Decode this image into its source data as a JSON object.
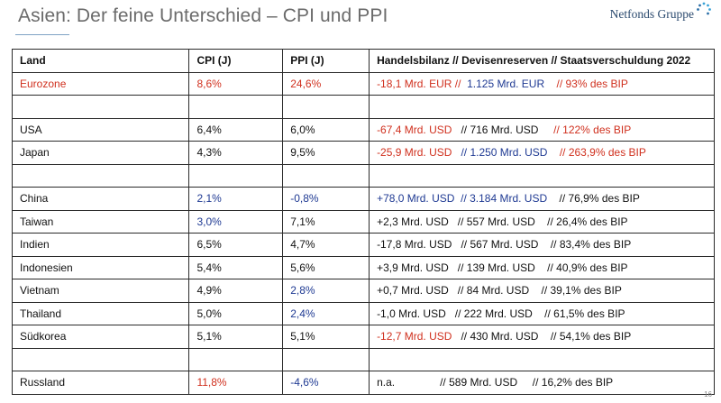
{
  "title": "Asien: Der feine Unterschied – CPI und PPI",
  "brand": "Netfonds Gruppe",
  "page_number": "16",
  "headers": {
    "land": "Land",
    "cpi": "CPI (J)",
    "ppi": "PPI (J)",
    "trade": "Handelsbilanz  // Devisenreserven  // Staatsverschuldung 2022"
  },
  "colors": {
    "red": "#d0301e",
    "blue": "#1f3a93",
    "black": "#111111"
  },
  "rows": [
    {
      "land": "Eurozone",
      "cpi": "8,6%",
      "ppi": "24,6%",
      "hb": "-18,1 Mrd. EUR  //",
      "dr": "1.125 Mrd. EUR",
      "sv": "//    93% des BIP"
    },
    {
      "land": "USA",
      "cpi": "6,4%",
      "ppi": "6,0%",
      "hb": "-67,4 Mrd. USD",
      "dr": "//  716 Mrd. USD",
      "sv": "//  122% des BIP"
    },
    {
      "land": "Japan",
      "cpi": "4,3%",
      "ppi": "9,5%",
      "hb": "-25,9 Mrd. USD",
      "dr": "//   1.250 Mrd. USD",
      "sv": "//  263,9% des BIP"
    },
    {
      "land": "China",
      "cpi": "2,1%",
      "ppi": "-0,8%",
      "hb": "+78,0 Mrd. USD",
      "dr": "// 3.184 Mrd. USD",
      "sv": "//   76,9% des BIP"
    },
    {
      "land": "Taiwan",
      "cpi": "3,0%",
      "ppi": "7,1%",
      "hb": "+2,3 Mrd. USD",
      "dr": "//    557 Mrd. USD",
      "sv": "//   26,4%  des BIP"
    },
    {
      "land": "Indien",
      "cpi": "6,5%",
      "ppi": "4,7%",
      "hb": "-17,8 Mrd. USD",
      "dr": "//    567 Mrd. USD",
      "sv": "//   83,4% des BIP"
    },
    {
      "land": "Indonesien",
      "cpi": "5,4%",
      "ppi": "5,6%",
      "hb": "+3,9 Mrd. USD",
      "dr": "//    139 Mrd. USD",
      "sv": "//   40,9% des BIP"
    },
    {
      "land": "Vietnam",
      "cpi": "4,9%",
      "ppi": "2,8%",
      "hb": "+0,7 Mrd. USD",
      "dr": "//      84 Mrd. USD",
      "sv": "//   39,1% des BIP"
    },
    {
      "land": "Thailand",
      "cpi": "5,0%",
      "ppi": "2,4%",
      "hb": "-1,0 Mrd. USD",
      "dr": "//    222 Mrd. USD",
      "sv": "//   61,5% des BIP"
    },
    {
      "land": "Südkorea",
      "cpi": "5,1%",
      "ppi": "5,1%",
      "hb": "-12,7 Mrd. USD",
      "dr": "//  430 Mrd. USD",
      "sv": "//  54,1% des BIP"
    },
    {
      "land": "Russland",
      "cpi": "11,8%",
      "ppi": "-4,6%",
      "hb": "n.a.",
      "dr": "//  589 Mrd. USD",
      "sv": "//  16,2% des BIP"
    }
  ]
}
